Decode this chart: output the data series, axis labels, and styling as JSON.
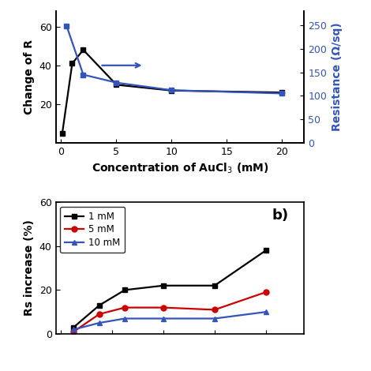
{
  "top": {
    "black_x": [
      0.1,
      1,
      2,
      5,
      10,
      20
    ],
    "black_y": [
      5,
      41,
      48,
      30,
      27,
      26
    ],
    "blue_x": [
      0.5,
      2,
      5,
      10,
      20
    ],
    "blue_y": [
      248,
      145,
      128,
      112,
      105
    ],
    "xlabel": "Concentration of AuCl$_3$ (mM)",
    "ylabel_left": "Change of R",
    "ylabel_right": "Resistance (Ω/sq)",
    "xlim": [
      -0.5,
      22
    ],
    "ylim_left": [
      0,
      68
    ],
    "ylim_right": [
      0,
      280
    ],
    "yticks_left": [
      20,
      40,
      60
    ],
    "yticks_right": [
      0,
      50,
      100,
      150,
      200,
      250
    ],
    "xticks": [
      0,
      5,
      10,
      15,
      20
    ],
    "black_color": "#000000",
    "blue_color": "#3355bb"
  },
  "bottom": {
    "x": [
      0.5,
      1.5,
      2.5,
      4,
      6,
      8
    ],
    "y_1mm": [
      3,
      13,
      20,
      22,
      22,
      38
    ],
    "y_5mm": [
      1,
      9,
      12,
      12,
      11,
      19
    ],
    "y_10mm": [
      2,
      5,
      7,
      7,
      7,
      10
    ],
    "ylabel": "Rs increase (%)",
    "xlim": [
      -0.2,
      9.5
    ],
    "ylim": [
      0,
      60
    ],
    "yticks": [
      0,
      20,
      40,
      60
    ],
    "label_1mm": "1 mM",
    "label_5mm": "5 mM",
    "label_10mm": "10 mM",
    "color_1mm": "#000000",
    "color_5mm": "#cc0000",
    "color_10mm": "#3355bb",
    "annotation": "b)"
  }
}
